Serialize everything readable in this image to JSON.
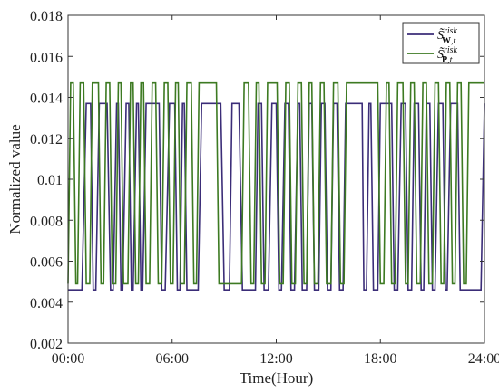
{
  "chart_data": {
    "type": "line",
    "title": "",
    "xlabel": "Time(Hour)",
    "ylabel": "Normalized value",
    "x_ticks": [
      "00:00",
      "06:00",
      "12:00",
      "18:00",
      "24:00"
    ],
    "y_ticks": [
      "0.002",
      "0.004",
      "0.006",
      "0.008",
      "0.01",
      "0.012",
      "0.014",
      "0.016",
      "0.018"
    ],
    "xlim": [
      0,
      24
    ],
    "ylim": [
      0.002,
      0.018
    ],
    "grid": false,
    "legend_position": "top-right",
    "series": [
      {
        "name": "S̃risk W,t",
        "color": "#3b2d78",
        "values": [
          [
            0.0,
            0.0046
          ],
          [
            0.8,
            0.0046
          ],
          [
            1.05,
            0.0137
          ],
          [
            1.3,
            0.0137
          ],
          [
            1.45,
            0.0046
          ],
          [
            1.6,
            0.0046
          ],
          [
            1.8,
            0.0137
          ],
          [
            2.25,
            0.0137
          ],
          [
            2.45,
            0.0046
          ],
          [
            2.6,
            0.0046
          ],
          [
            2.8,
            0.0137
          ],
          [
            2.9,
            0.0137
          ],
          [
            3.05,
            0.0046
          ],
          [
            3.15,
            0.0046
          ],
          [
            3.35,
            0.0137
          ],
          [
            3.5,
            0.0137
          ],
          [
            3.65,
            0.0046
          ],
          [
            3.75,
            0.0046
          ],
          [
            3.95,
            0.0137
          ],
          [
            4.05,
            0.0137
          ],
          [
            4.2,
            0.0046
          ],
          [
            4.3,
            0.0046
          ],
          [
            4.5,
            0.0137
          ],
          [
            5.25,
            0.0137
          ],
          [
            5.4,
            0.0046
          ],
          [
            5.6,
            0.0046
          ],
          [
            5.85,
            0.0137
          ],
          [
            6.15,
            0.0137
          ],
          [
            6.3,
            0.0046
          ],
          [
            6.45,
            0.0046
          ],
          [
            6.6,
            0.0137
          ],
          [
            6.7,
            0.0137
          ],
          [
            6.85,
            0.0046
          ],
          [
            7.5,
            0.0046
          ],
          [
            7.7,
            0.0137
          ],
          [
            8.8,
            0.0137
          ],
          [
            9.0,
            0.0046
          ],
          [
            9.3,
            0.0046
          ],
          [
            9.45,
            0.0137
          ],
          [
            9.85,
            0.0137
          ],
          [
            10.05,
            0.0046
          ],
          [
            10.8,
            0.0046
          ],
          [
            10.95,
            0.0137
          ],
          [
            11.15,
            0.0137
          ],
          [
            11.3,
            0.0046
          ],
          [
            11.55,
            0.0046
          ],
          [
            11.75,
            0.0137
          ],
          [
            12.0,
            0.0137
          ],
          [
            12.15,
            0.0046
          ],
          [
            12.3,
            0.0046
          ],
          [
            12.5,
            0.0137
          ],
          [
            12.7,
            0.0137
          ],
          [
            12.85,
            0.0046
          ],
          [
            13.05,
            0.0046
          ],
          [
            13.25,
            0.0137
          ],
          [
            13.35,
            0.0137
          ],
          [
            13.5,
            0.0046
          ],
          [
            13.75,
            0.0046
          ],
          [
            13.9,
            0.0137
          ],
          [
            14.05,
            0.0137
          ],
          [
            14.2,
            0.0046
          ],
          [
            14.45,
            0.0046
          ],
          [
            14.6,
            0.0137
          ],
          [
            14.8,
            0.0137
          ],
          [
            14.95,
            0.0046
          ],
          [
            15.15,
            0.0046
          ],
          [
            15.3,
            0.0137
          ],
          [
            15.5,
            0.0137
          ],
          [
            15.65,
            0.0046
          ],
          [
            15.85,
            0.0046
          ],
          [
            16.0,
            0.0137
          ],
          [
            16.95,
            0.0137
          ],
          [
            17.05,
            0.0046
          ],
          [
            17.2,
            0.0046
          ],
          [
            17.35,
            0.0137
          ],
          [
            17.45,
            0.0137
          ],
          [
            17.6,
            0.0046
          ],
          [
            17.85,
            0.0046
          ],
          [
            18.0,
            0.0137
          ],
          [
            18.65,
            0.0137
          ],
          [
            18.8,
            0.0046
          ],
          [
            19.0,
            0.0046
          ],
          [
            19.2,
            0.0137
          ],
          [
            19.45,
            0.0137
          ],
          [
            19.6,
            0.0046
          ],
          [
            19.8,
            0.0046
          ],
          [
            19.95,
            0.0137
          ],
          [
            20.2,
            0.0137
          ],
          [
            20.35,
            0.0046
          ],
          [
            20.5,
            0.0046
          ],
          [
            20.65,
            0.0137
          ],
          [
            20.85,
            0.0137
          ],
          [
            21.0,
            0.0046
          ],
          [
            21.15,
            0.0046
          ],
          [
            21.35,
            0.0137
          ],
          [
            21.6,
            0.0137
          ],
          [
            21.75,
            0.0046
          ],
          [
            21.85,
            0.0046
          ],
          [
            22.05,
            0.0137
          ],
          [
            22.45,
            0.0137
          ],
          [
            22.6,
            0.0046
          ],
          [
            23.8,
            0.0046
          ],
          [
            24.0,
            0.0137
          ]
        ]
      },
      {
        "name": "S̃risk P,t",
        "color": "#3d7a22",
        "values": [
          [
            0.0,
            0.0049
          ],
          [
            0.15,
            0.0147
          ],
          [
            0.3,
            0.0147
          ],
          [
            0.45,
            0.0049
          ],
          [
            0.55,
            0.0049
          ],
          [
            0.7,
            0.0147
          ],
          [
            0.9,
            0.0147
          ],
          [
            1.05,
            0.0049
          ],
          [
            1.25,
            0.0049
          ],
          [
            1.4,
            0.0147
          ],
          [
            1.75,
            0.0147
          ],
          [
            1.9,
            0.0049
          ],
          [
            2.05,
            0.0049
          ],
          [
            2.2,
            0.0147
          ],
          [
            2.4,
            0.0147
          ],
          [
            2.55,
            0.0049
          ],
          [
            2.75,
            0.0049
          ],
          [
            2.9,
            0.0147
          ],
          [
            3.05,
            0.0147
          ],
          [
            3.2,
            0.0049
          ],
          [
            3.45,
            0.0049
          ],
          [
            3.6,
            0.0147
          ],
          [
            3.75,
            0.0147
          ],
          [
            3.9,
            0.0049
          ],
          [
            4.05,
            0.0049
          ],
          [
            4.2,
            0.0147
          ],
          [
            4.35,
            0.0147
          ],
          [
            4.5,
            0.0049
          ],
          [
            4.7,
            0.0049
          ],
          [
            4.85,
            0.0147
          ],
          [
            5.05,
            0.0147
          ],
          [
            5.2,
            0.0049
          ],
          [
            5.4,
            0.0049
          ],
          [
            5.55,
            0.0147
          ],
          [
            5.75,
            0.0147
          ],
          [
            5.9,
            0.0049
          ],
          [
            6.05,
            0.0049
          ],
          [
            6.2,
            0.0147
          ],
          [
            6.35,
            0.0147
          ],
          [
            6.5,
            0.0049
          ],
          [
            6.7,
            0.0049
          ],
          [
            6.85,
            0.0147
          ],
          [
            7.1,
            0.0147
          ],
          [
            7.25,
            0.0049
          ],
          [
            7.4,
            0.0049
          ],
          [
            7.55,
            0.0147
          ],
          [
            8.55,
            0.0147
          ],
          [
            8.7,
            0.0049
          ],
          [
            10.0,
            0.0049
          ],
          [
            10.15,
            0.0147
          ],
          [
            10.4,
            0.0147
          ],
          [
            10.55,
            0.0049
          ],
          [
            10.7,
            0.0049
          ],
          [
            10.85,
            0.0147
          ],
          [
            11.0,
            0.0147
          ],
          [
            11.15,
            0.0049
          ],
          [
            11.35,
            0.0049
          ],
          [
            11.5,
            0.0147
          ],
          [
            12.05,
            0.0147
          ],
          [
            12.2,
            0.0049
          ],
          [
            12.4,
            0.0049
          ],
          [
            12.55,
            0.0147
          ],
          [
            12.75,
            0.0147
          ],
          [
            12.9,
            0.0049
          ],
          [
            13.1,
            0.0049
          ],
          [
            13.25,
            0.0147
          ],
          [
            13.45,
            0.0147
          ],
          [
            13.6,
            0.0049
          ],
          [
            13.75,
            0.0049
          ],
          [
            13.9,
            0.0147
          ],
          [
            14.05,
            0.0147
          ],
          [
            14.2,
            0.0049
          ],
          [
            14.4,
            0.0049
          ],
          [
            14.55,
            0.0147
          ],
          [
            14.75,
            0.0147
          ],
          [
            14.9,
            0.0049
          ],
          [
            15.15,
            0.0049
          ],
          [
            15.3,
            0.0147
          ],
          [
            15.55,
            0.0147
          ],
          [
            15.7,
            0.0049
          ],
          [
            15.9,
            0.0049
          ],
          [
            16.05,
            0.0147
          ],
          [
            17.85,
            0.0147
          ],
          [
            18.0,
            0.0049
          ],
          [
            18.2,
            0.0049
          ],
          [
            18.35,
            0.0147
          ],
          [
            18.5,
            0.0147
          ],
          [
            18.65,
            0.0049
          ],
          [
            18.85,
            0.0049
          ],
          [
            19.0,
            0.0147
          ],
          [
            19.3,
            0.0147
          ],
          [
            19.45,
            0.0049
          ],
          [
            19.6,
            0.0049
          ],
          [
            19.75,
            0.0147
          ],
          [
            19.95,
            0.0147
          ],
          [
            20.1,
            0.0049
          ],
          [
            20.3,
            0.0049
          ],
          [
            20.45,
            0.0147
          ],
          [
            20.65,
            0.0147
          ],
          [
            20.8,
            0.0049
          ],
          [
            21.0,
            0.0049
          ],
          [
            21.15,
            0.0147
          ],
          [
            21.35,
            0.0147
          ],
          [
            21.5,
            0.0049
          ],
          [
            21.65,
            0.0049
          ],
          [
            21.8,
            0.0147
          ],
          [
            22.0,
            0.0147
          ],
          [
            22.15,
            0.0049
          ],
          [
            22.3,
            0.0049
          ],
          [
            22.45,
            0.0147
          ],
          [
            22.65,
            0.0147
          ],
          [
            22.8,
            0.0049
          ],
          [
            22.95,
            0.0049
          ],
          [
            23.1,
            0.0147
          ],
          [
            24.0,
            0.0147
          ]
        ]
      }
    ]
  }
}
